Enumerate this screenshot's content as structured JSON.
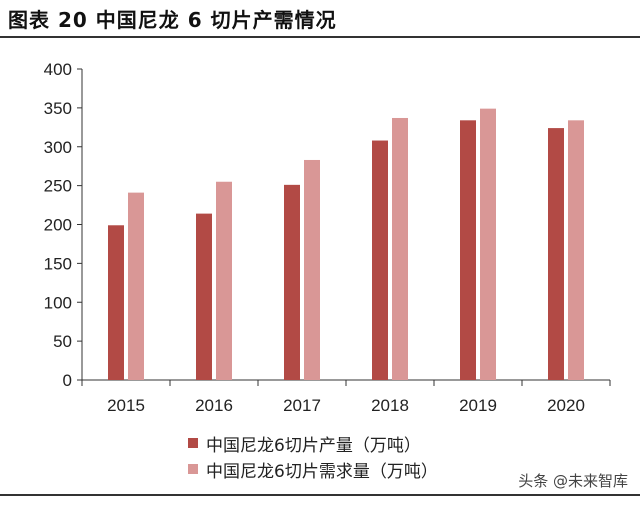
{
  "header": {
    "title": "图表 20  中国尼龙 6 切片产需情况"
  },
  "watermark": "头条 @未来智库",
  "chart_data": {
    "type": "bar",
    "title": "图表 20  中国尼龙 6 切片产需情况",
    "xlabel": "",
    "ylabel": "",
    "categories": [
      "2015",
      "2016",
      "2017",
      "2018",
      "2019",
      "2020"
    ],
    "ylim": [
      0,
      400
    ],
    "yticks": [
      0,
      50,
      100,
      150,
      200,
      250,
      300,
      350,
      400
    ],
    "grid": false,
    "legend_position": "bottom",
    "series": [
      {
        "name": "中国尼龙6切片产量（万吨）",
        "color": "#b24a45",
        "values": [
          199,
          214,
          251,
          308,
          334,
          324
        ]
      },
      {
        "name": "中国尼龙6切片需求量（万吨）",
        "color": "#d99796",
        "values": [
          241,
          255,
          283,
          337,
          349,
          334
        ]
      }
    ]
  }
}
